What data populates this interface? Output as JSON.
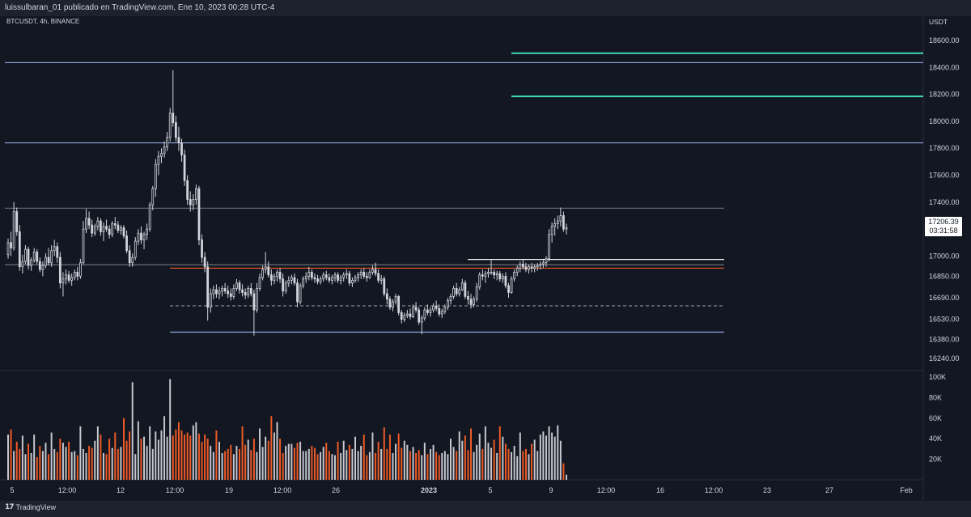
{
  "header": {
    "publish_text": "luissulbaran_01 publicado en TradingView.com, Ene 10, 2023 00:28 UTC-4"
  },
  "symbol": {
    "pair": "BTCUSDT",
    "interval": "4h",
    "exchange": "BINANCE"
  },
  "price_axis": {
    "currency": "USDT",
    "last_price": "17206.39",
    "countdown": "03:31:58"
  },
  "footer": {
    "brand": "TradingView"
  },
  "colors": {
    "background": "#131722",
    "candle": "#d1d4dc",
    "vol_up": "#c7c9cf",
    "vol_down": "#f05b26",
    "level_blue": "#8fa8e0",
    "level_gray": "#6b6f7a",
    "level_red": "#f05b26",
    "level_green": "#3ddbb5",
    "level_white": "#ffffff"
  },
  "chart_data": {
    "type": "candlestick",
    "price_axis_labels": [
      "18600.00",
      "18400.00",
      "18200.00",
      "18000.00",
      "17800.00",
      "17600.00",
      "17400.00",
      "17200.00",
      "17000.00",
      "16850.00",
      "16690.00",
      "16530.00",
      "16380.00",
      "16240.00"
    ],
    "volume_axis_labels": [
      "100K",
      "80K",
      "60K",
      "40K",
      "20K"
    ],
    "time_axis_labels": [
      "5",
      "12:00",
      "12",
      "12:00",
      "19",
      "12:00",
      "26",
      "2023",
      "5",
      "9",
      "12:00",
      "16",
      "12:00",
      "23",
      "27",
      "Feb"
    ],
    "price_range": [
      16150,
      18780
    ],
    "volume_range": [
      0,
      100000
    ],
    "candles_ohlc": [
      [
        17010,
        17130,
        16980,
        17100
      ],
      [
        17100,
        17180,
        17000,
        17060
      ],
      [
        17060,
        17400,
        17040,
        17330
      ],
      [
        17330,
        17360,
        17150,
        17180
      ],
      [
        17180,
        17230,
        16890,
        16920
      ],
      [
        16920,
        17010,
        16870,
        16960
      ],
      [
        16960,
        17080,
        16940,
        17050
      ],
      [
        17050,
        17070,
        16900,
        16930
      ],
      [
        16930,
        16990,
        16890,
        16970
      ],
      [
        16970,
        17060,
        16950,
        17030
      ],
      [
        17030,
        17050,
        16940,
        16960
      ],
      [
        16960,
        16990,
        16880,
        16900
      ],
      [
        16900,
        16960,
        16850,
        16930
      ],
      [
        16930,
        17020,
        16910,
        16990
      ],
      [
        16990,
        17060,
        16930,
        16950
      ],
      [
        16950,
        17080,
        16920,
        17040
      ],
      [
        17040,
        17120,
        17000,
        17070
      ],
      [
        17070,
        17100,
        16950,
        16990
      ],
      [
        16990,
        17030,
        16760,
        16800
      ],
      [
        16800,
        16880,
        16700,
        16830
      ],
      [
        16830,
        16900,
        16790,
        16860
      ],
      [
        16860,
        16890,
        16800,
        16820
      ],
      [
        16820,
        16870,
        16780,
        16840
      ],
      [
        16840,
        16900,
        16820,
        16880
      ],
      [
        16880,
        16920,
        16820,
        16850
      ],
      [
        16850,
        16980,
        16830,
        16950
      ],
      [
        16950,
        17260,
        16940,
        17200
      ],
      [
        17200,
        17350,
        17170,
        17280
      ],
      [
        17280,
        17330,
        17200,
        17230
      ],
      [
        17230,
        17270,
        17140,
        17170
      ],
      [
        17170,
        17240,
        17150,
        17220
      ],
      [
        17220,
        17290,
        17190,
        17260
      ],
      [
        17260,
        17280,
        17150,
        17180
      ],
      [
        17180,
        17250,
        17110,
        17220
      ],
      [
        17220,
        17270,
        17180,
        17200
      ],
      [
        17200,
        17230,
        17130,
        17160
      ],
      [
        17160,
        17260,
        17140,
        17240
      ],
      [
        17240,
        17290,
        17200,
        17230
      ],
      [
        17230,
        17260,
        17170,
        17190
      ],
      [
        17190,
        17230,
        17160,
        17210
      ],
      [
        17210,
        17230,
        17130,
        17150
      ],
      [
        17150,
        17190,
        17020,
        17040
      ],
      [
        17040,
        17080,
        16920,
        16950
      ],
      [
        16950,
        17020,
        16920,
        16990
      ],
      [
        16990,
        17140,
        16970,
        17110
      ],
      [
        17110,
        17200,
        17080,
        17170
      ],
      [
        17170,
        17220,
        17090,
        17120
      ],
      [
        17120,
        17180,
        17050,
        17160
      ],
      [
        17160,
        17240,
        17120,
        17200
      ],
      [
        17200,
        17400,
        17180,
        17380
      ],
      [
        17380,
        17520,
        17340,
        17500
      ],
      [
        17500,
        17720,
        17440,
        17680
      ],
      [
        17680,
        17780,
        17600,
        17740
      ],
      [
        17740,
        17800,
        17690,
        17760
      ],
      [
        17760,
        17850,
        17730,
        17810
      ],
      [
        17810,
        17920,
        17780,
        17880
      ],
      [
        17880,
        18100,
        17850,
        18060
      ],
      [
        18060,
        18380,
        17960,
        17990
      ],
      [
        17990,
        18040,
        17850,
        17880
      ],
      [
        17880,
        17960,
        17780,
        17840
      ],
      [
        17840,
        17870,
        17700,
        17750
      ],
      [
        17750,
        17790,
        17520,
        17560
      ],
      [
        17560,
        17600,
        17380,
        17420
      ],
      [
        17420,
        17480,
        17330,
        17380
      ],
      [
        17380,
        17460,
        17340,
        17420
      ],
      [
        17420,
        17530,
        17380,
        17500
      ],
      [
        17500,
        17520,
        17080,
        17120
      ],
      [
        17120,
        17160,
        16950,
        16990
      ],
      [
        16990,
        17030,
        16880,
        16920
      ],
      [
        16920,
        16960,
        16520,
        16620
      ],
      [
        16620,
        16760,
        16580,
        16720
      ],
      [
        16720,
        16780,
        16680,
        16750
      ],
      [
        16750,
        16790,
        16690,
        16720
      ],
      [
        16720,
        16770,
        16680,
        16740
      ],
      [
        16740,
        16780,
        16700,
        16760
      ],
      [
        16760,
        16800,
        16720,
        16740
      ],
      [
        16740,
        16780,
        16690,
        16720
      ],
      [
        16720,
        16760,
        16670,
        16700
      ],
      [
        16700,
        16790,
        16680,
        16760
      ],
      [
        16760,
        16830,
        16740,
        16800
      ],
      [
        16800,
        16820,
        16720,
        16750
      ],
      [
        16750,
        16790,
        16700,
        16730
      ],
      [
        16730,
        16760,
        16680,
        16710
      ],
      [
        16710,
        16780,
        16690,
        16760
      ],
      [
        16760,
        16800,
        16700,
        16720
      ],
      [
        16720,
        16750,
        16410,
        16600
      ],
      [
        16600,
        16800,
        16580,
        16760
      ],
      [
        16760,
        16870,
        16740,
        16840
      ],
      [
        16840,
        16930,
        16820,
        16900
      ],
      [
        16900,
        17030,
        16870,
        16920
      ],
      [
        16920,
        16960,
        16840,
        16860
      ],
      [
        16860,
        16900,
        16780,
        16820
      ],
      [
        16820,
        16870,
        16790,
        16850
      ],
      [
        16850,
        16900,
        16810,
        16880
      ],
      [
        16880,
        16910,
        16800,
        16830
      ],
      [
        16830,
        16870,
        16700,
        16740
      ],
      [
        16740,
        16820,
        16720,
        16800
      ],
      [
        16800,
        16850,
        16770,
        16820
      ],
      [
        16820,
        16860,
        16790,
        16840
      ],
      [
        16840,
        16870,
        16780,
        16800
      ],
      [
        16800,
        16830,
        16620,
        16660
      ],
      [
        16660,
        16800,
        16640,
        16780
      ],
      [
        16780,
        16850,
        16760,
        16830
      ],
      [
        16830,
        16880,
        16800,
        16850
      ],
      [
        16850,
        16920,
        16820,
        16880
      ],
      [
        16880,
        16900,
        16820,
        16840
      ],
      [
        16840,
        16870,
        16800,
        16830
      ],
      [
        16830,
        16860,
        16790,
        16810
      ],
      [
        16810,
        16850,
        16790,
        16830
      ],
      [
        16830,
        16880,
        16810,
        16860
      ],
      [
        16860,
        16890,
        16820,
        16840
      ],
      [
        16840,
        16870,
        16800,
        16820
      ],
      [
        16820,
        16860,
        16790,
        16840
      ],
      [
        16840,
        16880,
        16810,
        16860
      ],
      [
        16860,
        16880,
        16800,
        16820
      ],
      [
        16820,
        16860,
        16790,
        16840
      ],
      [
        16840,
        16880,
        16810,
        16860
      ],
      [
        16860,
        16900,
        16830,
        16870
      ],
      [
        16870,
        16890,
        16780,
        16800
      ],
      [
        16800,
        16840,
        16770,
        16820
      ],
      [
        16820,
        16860,
        16800,
        16840
      ],
      [
        16840,
        16880,
        16810,
        16860
      ],
      [
        16860,
        16900,
        16830,
        16880
      ],
      [
        16880,
        16910,
        16830,
        16850
      ],
      [
        16850,
        16880,
        16810,
        16840
      ],
      [
        16840,
        16900,
        16830,
        16880
      ],
      [
        16880,
        16930,
        16860,
        16900
      ],
      [
        16900,
        16950,
        16850,
        16870
      ],
      [
        16870,
        16900,
        16800,
        16820
      ],
      [
        16820,
        16860,
        16790,
        16830
      ],
      [
        16830,
        16850,
        16700,
        16720
      ],
      [
        16720,
        16760,
        16640,
        16680
      ],
      [
        16680,
        16700,
        16600,
        16620
      ],
      [
        16620,
        16680,
        16590,
        16660
      ],
      [
        16660,
        16720,
        16640,
        16700
      ],
      [
        16700,
        16710,
        16560,
        16580
      ],
      [
        16580,
        16600,
        16500,
        16530
      ],
      [
        16530,
        16580,
        16510,
        16560
      ],
      [
        16560,
        16600,
        16540,
        16570
      ],
      [
        16570,
        16610,
        16530,
        16550
      ],
      [
        16550,
        16640,
        16540,
        16620
      ],
      [
        16620,
        16660,
        16580,
        16600
      ],
      [
        16600,
        16620,
        16490,
        16510
      ],
      [
        16510,
        16560,
        16420,
        16540
      ],
      [
        16540,
        16620,
        16520,
        16600
      ],
      [
        16600,
        16640,
        16560,
        16580
      ],
      [
        16580,
        16620,
        16550,
        16600
      ],
      [
        16600,
        16650,
        16580,
        16630
      ],
      [
        16630,
        16670,
        16590,
        16610
      ],
      [
        16610,
        16640,
        16550,
        16570
      ],
      [
        16570,
        16610,
        16540,
        16590
      ],
      [
        16590,
        16640,
        16570,
        16620
      ],
      [
        16620,
        16690,
        16600,
        16670
      ],
      [
        16670,
        16720,
        16640,
        16700
      ],
      [
        16700,
        16780,
        16680,
        16760
      ],
      [
        16760,
        16800,
        16700,
        16720
      ],
      [
        16720,
        16770,
        16700,
        16750
      ],
      [
        16750,
        16830,
        16740,
        16800
      ],
      [
        16800,
        16820,
        16680,
        16700
      ],
      [
        16700,
        16740,
        16640,
        16680
      ],
      [
        16680,
        16720,
        16610,
        16640
      ],
      [
        16640,
        16700,
        16620,
        16680
      ],
      [
        16680,
        16800,
        16660,
        16770
      ],
      [
        16770,
        16880,
        16750,
        16860
      ],
      [
        16860,
        16900,
        16820,
        16850
      ],
      [
        16850,
        16890,
        16800,
        16870
      ],
      [
        16870,
        16910,
        16840,
        16880
      ],
      [
        16880,
        16970,
        16860,
        16880
      ],
      [
        16880,
        16900,
        16830,
        16860
      ],
      [
        16860,
        16890,
        16820,
        16870
      ],
      [
        16870,
        16890,
        16810,
        16830
      ],
      [
        16830,
        16870,
        16800,
        16850
      ],
      [
        16850,
        16880,
        16760,
        16780
      ],
      [
        16780,
        16800,
        16690,
        16730
      ],
      [
        16730,
        16850,
        16720,
        16830
      ],
      [
        16830,
        16900,
        16810,
        16880
      ],
      [
        16880,
        16930,
        16850,
        16910
      ],
      [
        16910,
        16960,
        16880,
        16940
      ],
      [
        16940,
        16980,
        16900,
        16920
      ],
      [
        16920,
        16950,
        16880,
        16900
      ],
      [
        16900,
        16940,
        16870,
        16920
      ],
      [
        16920,
        16950,
        16880,
        16910
      ],
      [
        16910,
        16940,
        16880,
        16920
      ],
      [
        16920,
        16950,
        16890,
        16930
      ],
      [
        16930,
        16960,
        16900,
        16940
      ],
      [
        16940,
        16980,
        16910,
        16950
      ],
      [
        16950,
        17000,
        16920,
        16980
      ],
      [
        16980,
        17200,
        16960,
        17160
      ],
      [
        17160,
        17250,
        17100,
        17220
      ],
      [
        17220,
        17280,
        17150,
        17240
      ],
      [
        17240,
        17300,
        17200,
        17260
      ],
      [
        17260,
        17360,
        17220,
        17300
      ],
      [
        17300,
        17330,
        17180,
        17200
      ],
      [
        17200,
        17240,
        17160,
        17210
      ]
    ],
    "volumes": [
      44000,
      49000,
      28000,
      37000,
      30000,
      43000,
      25000,
      35000,
      26000,
      44000,
      22000,
      33000,
      28000,
      36000,
      25000,
      46000,
      30000,
      27000,
      40000,
      36000,
      32000,
      37000,
      27000,
      28000,
      24000,
      52000,
      30000,
      26000,
      33000,
      31000,
      38000,
      52000,
      44000,
      26000,
      25000,
      40000,
      31000,
      46000,
      30000,
      32000,
      60000,
      38000,
      47000,
      95000,
      25000,
      57000,
      40000,
      42000,
      33000,
      52000,
      30000,
      47000,
      39000,
      48000,
      62000,
      42000,
      98000,
      43000,
      49000,
      56000,
      48000,
      44000,
      46000,
      43000,
      53000,
      56000,
      45000,
      37000,
      44000,
      40000,
      33000,
      27000,
      48000,
      37000,
      26000,
      28000,
      30000,
      34000,
      25000,
      33000,
      30000,
      52000,
      34000,
      39000,
      29000,
      40000,
      27000,
      50000,
      32000,
      42000,
      38000,
      62000,
      46000,
      56000,
      40000,
      26000,
      33000,
      35000,
      35000,
      31000,
      36000,
      37000,
      28000,
      28000,
      30000,
      33000,
      31000,
      25000,
      27000,
      32000,
      36000,
      28000,
      25000,
      24000,
      37000,
      26000,
      38000,
      29000,
      34000,
      30000,
      42000,
      28000,
      33000,
      44000,
      24000,
      27000,
      46000,
      26000,
      37000,
      30000,
      51000,
      30000,
      44000,
      26000,
      35000,
      45000,
      31000,
      38000,
      34000,
      28000,
      32000,
      26000,
      29000,
      24000,
      36000,
      25000,
      30000,
      34000,
      27000,
      24000,
      26000,
      28000,
      25000,
      40000,
      32000,
      28000,
      47000,
      38000,
      43000,
      29000,
      50000,
      27000,
      34000,
      45000,
      30000,
      52000,
      36000,
      31000,
      39000,
      26000,
      52000,
      42000,
      35000,
      30000,
      27000,
      33000,
      23000,
      46000,
      28000,
      30000,
      25000,
      35000,
      39000,
      28000,
      44000,
      47000,
      43000,
      52000,
      46000,
      42000,
      53000,
      38000,
      16000,
      5000
    ],
    "horizontal_levels": [
      {
        "price": 18435,
        "color": "blue",
        "extent": "full"
      },
      {
        "price": 17840,
        "color": "blue",
        "extent": "full"
      },
      {
        "price": 17355,
        "color": "gray",
        "extent": "to-mid"
      },
      {
        "price": 16935,
        "color": "gray",
        "extent": "to-mid"
      },
      {
        "price": 16910,
        "color": "red",
        "extent": "mid"
      },
      {
        "price": 16975,
        "color": "white",
        "extent": "right-mid"
      },
      {
        "price": 16630,
        "color": "gray-dashed",
        "extent": "mid"
      },
      {
        "price": 16435,
        "color": "blue",
        "extent": "mid"
      },
      {
        "price": 18505,
        "color": "green",
        "extent": "right"
      },
      {
        "price": 18185,
        "color": "green",
        "extent": "right"
      }
    ]
  }
}
